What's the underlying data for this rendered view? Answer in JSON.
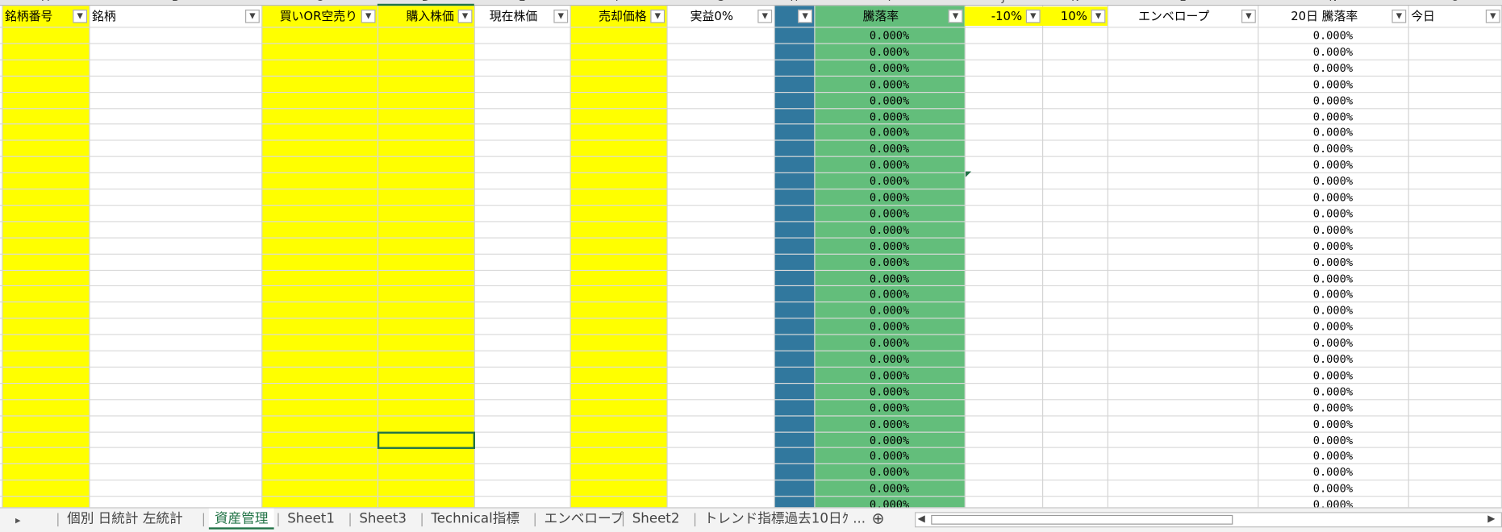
{
  "columns": [
    {
      "letter": "A",
      "header": "銘柄番号"
    },
    {
      "letter": "B",
      "header": "銘柄"
    },
    {
      "letter": "C",
      "header": "買いOR空売り"
    },
    {
      "letter": "D",
      "header": "購入株価"
    },
    {
      "letter": "E",
      "header": "現在株価"
    },
    {
      "letter": "F",
      "header": "売却価格"
    },
    {
      "letter": "G",
      "header": "実益0%"
    },
    {
      "letter": "H"
    },
    {
      "letter": "I",
      "header": "騰落率"
    },
    {
      "letter": "J",
      "header": "-10%"
    },
    {
      "letter": "K",
      "header": "10%"
    },
    {
      "letter": "L",
      "header": "エンベロープ"
    },
    {
      "letter": "N",
      "header": "20日  騰落率"
    },
    {
      "letter": "O",
      "header": "今日"
    }
  ],
  "rows": [
    {
      "I": "0.000%",
      "N": "0.000%"
    },
    {
      "I": "0.000%",
      "N": "0.000%"
    },
    {
      "I": "0.000%",
      "N": "0.000%"
    },
    {
      "I": "0.000%",
      "N": "0.000%"
    },
    {
      "I": "0.000%",
      "N": "0.000%"
    },
    {
      "I": "0.000%",
      "N": "0.000%"
    },
    {
      "I": "0.000%",
      "N": "0.000%"
    },
    {
      "I": "0.000%",
      "N": "0.000%"
    },
    {
      "I": "0.000%",
      "N": "0.000%"
    },
    {
      "I": "0.000%",
      "N": "0.000%"
    },
    {
      "I": "0.000%",
      "N": "0.000%"
    },
    {
      "I": "0.000%",
      "N": "0.000%"
    },
    {
      "I": "0.000%",
      "N": "0.000%"
    },
    {
      "I": "0.000%",
      "N": "0.000%"
    },
    {
      "I": "0.000%",
      "N": "0.000%"
    },
    {
      "I": "0.000%",
      "N": "0.000%"
    },
    {
      "I": "0.000%",
      "N": "0.000%"
    },
    {
      "I": "0.000%",
      "N": "0.000%"
    },
    {
      "I": "0.000%",
      "N": "0.000%"
    },
    {
      "I": "0.000%",
      "N": "0.000%"
    },
    {
      "I": "0.000%",
      "N": "0.000%"
    },
    {
      "I": "0.000%",
      "N": "0.000%"
    },
    {
      "I": "0.000%",
      "N": "0.000%"
    },
    {
      "I": "0.000%",
      "N": "0.000%"
    },
    {
      "I": "0.000%",
      "N": "0.000%"
    },
    {
      "I": "0.000%",
      "N": "0.000%"
    },
    {
      "I": "0.000%",
      "N": "0.000%"
    },
    {
      "I": "0.000%",
      "N": "0.000%"
    },
    {
      "I": "0.000%",
      "N": "0.000%"
    },
    {
      "I": "0.000%",
      "N": "0.000%"
    }
  ],
  "tabs": [
    "個別  日統計  左統計",
    "資産管理",
    "Sheet1",
    "Sheet3",
    "Technical指標",
    "エンベロープ",
    "Sheet2",
    "トレンド指標過去10日ｸ ..."
  ],
  "active_tab": "資産管理"
}
